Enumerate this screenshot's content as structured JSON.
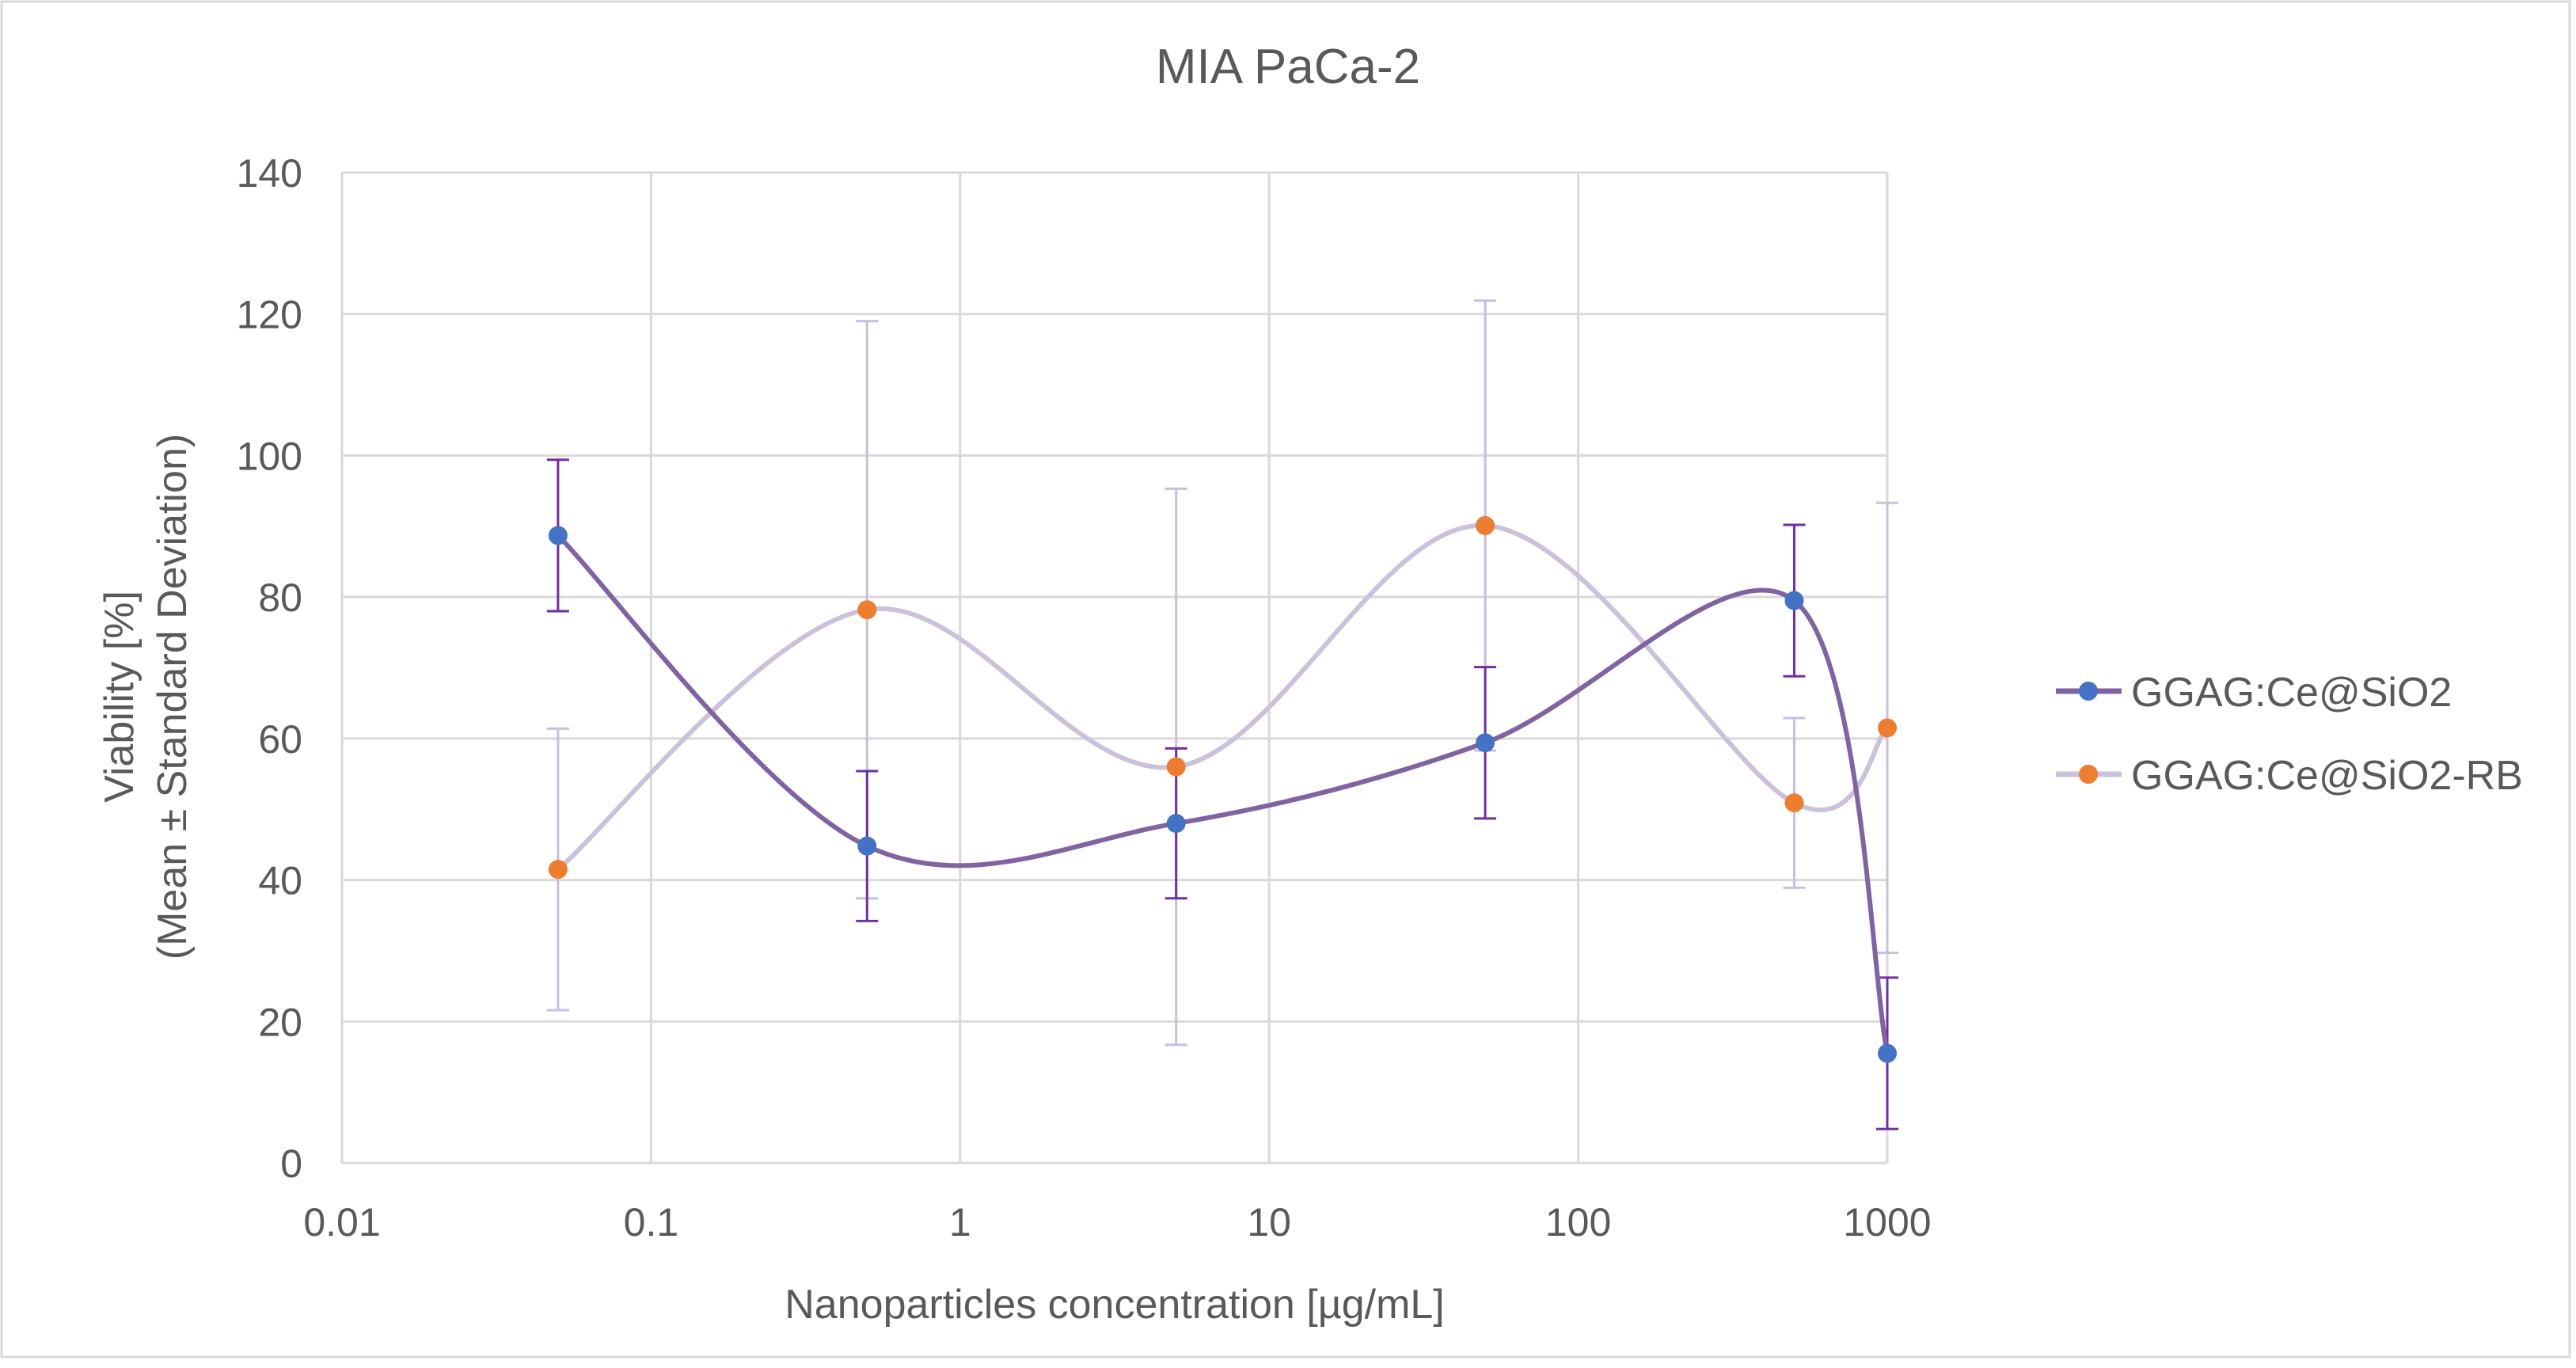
{
  "chart_data": {
    "type": "line",
    "title": "MIA PaCa-2",
    "xlabel": "Nanoparticles concentration [µg/mL]",
    "ylabel_line1": "Viability [%]",
    "ylabel_line2": "(Mean ± Standard Deviation)",
    "x_scale": "log",
    "xlim": [
      0.01,
      1000
    ],
    "ylim": [
      0,
      140
    ],
    "x_ticks": [
      "0.01",
      "0.1",
      "1",
      "10",
      "100",
      "1000"
    ],
    "x_tick_values": [
      0.01,
      0.1,
      1,
      10,
      100,
      1000
    ],
    "y_ticks": [
      "0",
      "20",
      "40",
      "60",
      "80",
      "100",
      "120",
      "140"
    ],
    "y_tick_values": [
      0,
      20,
      40,
      60,
      80,
      100,
      120,
      140
    ],
    "grid": true,
    "smoothed": true,
    "legend_position": "right",
    "series": [
      {
        "name": "GGAG:Ce@SiO2",
        "line_color": "#8064A2",
        "marker_color": "#4472C4",
        "error_color": "#7030A0",
        "x": [
          0.05,
          0.5,
          5,
          50,
          500,
          1000
        ],
        "y": [
          88.7,
          44.8,
          48.0,
          59.4,
          79.5,
          15.5
        ],
        "error": [
          10.7,
          10.6,
          10.6,
          10.7,
          10.7,
          10.7
        ]
      },
      {
        "name": "GGAG:Ce@SiO2-RB",
        "line_color": "#CCC1DA",
        "marker_color": "#ED7D31",
        "error_color": "#C9BFDD",
        "x": [
          0.05,
          0.5,
          5,
          50,
          500,
          1000
        ],
        "y": [
          41.5,
          78.2,
          56.0,
          90.1,
          50.9,
          61.5
        ],
        "error": [
          19.9,
          40.8,
          39.3,
          31.8,
          12.0,
          31.8
        ]
      }
    ]
  }
}
